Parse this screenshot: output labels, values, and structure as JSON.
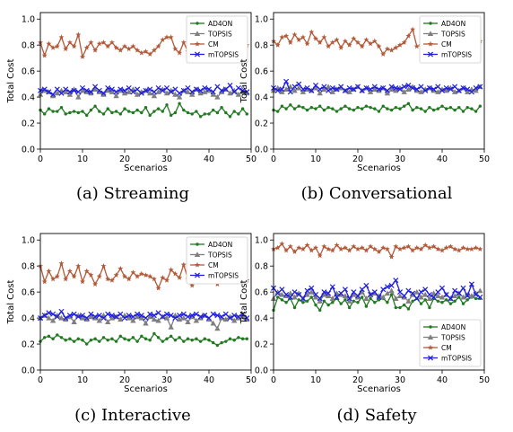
{
  "colors": {
    "AD4ON": "#217a21",
    "TOPSIS": "#7f7f7f",
    "CM": "#b35a3a",
    "mTOPSIS": "#1f1fe0"
  },
  "chart_data": [
    {
      "type": "line",
      "caption": "(a) Streaming",
      "xlabel": "Scenarios",
      "ylabel": "Total Cost",
      "xlim": [
        0,
        50
      ],
      "ylim": [
        0,
        1.05
      ],
      "legend": "top-right",
      "grid": false,
      "xticks": [
        "0",
        "10",
        "20",
        "30",
        "40",
        "50"
      ],
      "yticks": [
        "0.0",
        "0.2",
        "0.4",
        "0.6",
        "0.8",
        "1.0"
      ],
      "series": [
        {
          "name": "AD4ON",
          "marker": "dot",
          "values": [
            0.3,
            0.27,
            0.31,
            0.29,
            0.29,
            0.32,
            0.27,
            0.28,
            0.29,
            0.28,
            0.29,
            0.26,
            0.3,
            0.33,
            0.29,
            0.27,
            0.31,
            0.28,
            0.29,
            0.27,
            0.31,
            0.29,
            0.28,
            0.3,
            0.28,
            0.32,
            0.26,
            0.29,
            0.31,
            0.29,
            0.34,
            0.26,
            0.28,
            0.35,
            0.3,
            0.28,
            0.27,
            0.29,
            0.25,
            0.27,
            0.27,
            0.3,
            0.28,
            0.32,
            0.28,
            0.25,
            0.29,
            0.27,
            0.31,
            0.27
          ]
        },
        {
          "name": "TOPSIS",
          "marker": "triangle",
          "values": [
            0.42,
            0.45,
            0.44,
            0.41,
            0.43,
            0.45,
            0.44,
            0.42,
            0.46,
            0.4,
            0.45,
            0.44,
            0.43,
            0.46,
            0.44,
            0.42,
            0.45,
            0.44,
            0.41,
            0.45,
            0.43,
            0.44,
            0.46,
            0.42,
            0.44,
            0.45,
            0.43,
            0.41,
            0.44,
            0.46,
            0.43,
            0.45,
            0.42,
            0.4,
            0.45,
            0.44,
            0.42,
            0.46,
            0.43,
            0.44,
            0.45,
            0.42,
            0.4,
            0.44,
            0.46,
            0.43,
            0.45,
            0.42,
            0.44,
            0.43
          ]
        },
        {
          "name": "CM",
          "marker": "star",
          "values": [
            0.82,
            0.72,
            0.81,
            0.78,
            0.79,
            0.86,
            0.77,
            0.82,
            0.79,
            0.88,
            0.71,
            0.78,
            0.82,
            0.76,
            0.81,
            0.82,
            0.79,
            0.82,
            0.78,
            0.76,
            0.79,
            0.77,
            0.79,
            0.76,
            0.74,
            0.75,
            0.73,
            0.76,
            0.79,
            0.84,
            0.86,
            0.86,
            0.77,
            0.74,
            0.82,
            0.75,
            0.73,
            0.77,
            0.8,
            0.73,
            0.82,
            0.76,
            0.81,
            0.74,
            0.78,
            0.8,
            0.74,
            0.79,
            0.77,
            0.8
          ]
        },
        {
          "name": "mTOPSIS",
          "marker": "x",
          "values": [
            0.45,
            0.46,
            0.44,
            0.42,
            0.46,
            0.43,
            0.46,
            0.44,
            0.45,
            0.44,
            0.47,
            0.45,
            0.44,
            0.48,
            0.45,
            0.43,
            0.47,
            0.46,
            0.44,
            0.46,
            0.45,
            0.47,
            0.44,
            0.46,
            0.43,
            0.45,
            0.46,
            0.44,
            0.47,
            0.45,
            0.47,
            0.44,
            0.46,
            0.43,
            0.45,
            0.47,
            0.44,
            0.46,
            0.45,
            0.47,
            0.46,
            0.44,
            0.48,
            0.45,
            0.46,
            0.49,
            0.44,
            0.47,
            0.45,
            0.44
          ]
        }
      ]
    },
    {
      "type": "line",
      "caption": "(b) Conversational",
      "xlabel": "Scenarios",
      "ylabel": "Total Cost",
      "xlim": [
        0,
        50
      ],
      "ylim": [
        0,
        1.05
      ],
      "legend": "top-right",
      "grid": false,
      "xticks": [
        "0",
        "10",
        "20",
        "30",
        "40",
        "50"
      ],
      "yticks": [
        "0.0",
        "0.2",
        "0.4",
        "0.6",
        "0.8",
        "1.0"
      ],
      "series": [
        {
          "name": "AD4ON",
          "marker": "dot",
          "values": [
            0.3,
            0.29,
            0.33,
            0.31,
            0.34,
            0.31,
            0.33,
            0.32,
            0.3,
            0.32,
            0.31,
            0.33,
            0.3,
            0.32,
            0.31,
            0.29,
            0.31,
            0.33,
            0.31,
            0.3,
            0.32,
            0.31,
            0.33,
            0.32,
            0.31,
            0.29,
            0.33,
            0.31,
            0.3,
            0.32,
            0.31,
            0.33,
            0.35,
            0.3,
            0.32,
            0.31,
            0.29,
            0.32,
            0.3,
            0.31,
            0.33,
            0.31,
            0.32,
            0.3,
            0.32,
            0.29,
            0.32,
            0.31,
            0.29,
            0.33
          ]
        },
        {
          "name": "TOPSIS",
          "marker": "triangle",
          "values": [
            0.45,
            0.47,
            0.44,
            0.46,
            0.48,
            0.45,
            0.47,
            0.44,
            0.46,
            0.45,
            0.47,
            0.43,
            0.46,
            0.48,
            0.44,
            0.46,
            0.47,
            0.45,
            0.44,
            0.46,
            0.48,
            0.45,
            0.47,
            0.44,
            0.46,
            0.45,
            0.47,
            0.43,
            0.46,
            0.45,
            0.47,
            0.44,
            0.46,
            0.48,
            0.45,
            0.44,
            0.46,
            0.47,
            0.45,
            0.44,
            0.46,
            0.45,
            0.47,
            0.44,
            0.45,
            0.47,
            0.44,
            0.46,
            0.45,
            0.48
          ]
        },
        {
          "name": "CM",
          "marker": "star",
          "values": [
            0.83,
            0.8,
            0.86,
            0.87,
            0.82,
            0.88,
            0.84,
            0.86,
            0.81,
            0.9,
            0.85,
            0.82,
            0.86,
            0.79,
            0.82,
            0.84,
            0.78,
            0.83,
            0.8,
            0.85,
            0.82,
            0.79,
            0.84,
            0.81,
            0.83,
            0.79,
            0.73,
            0.77,
            0.76,
            0.78,
            0.8,
            0.82,
            0.87,
            0.92,
            0.79,
            0.8,
            0.85,
            0.81,
            0.84,
            0.82,
            0.8,
            0.83,
            0.85,
            0.79,
            0.81,
            0.82,
            0.8,
            0.86,
            0.81,
            0.83
          ]
        },
        {
          "name": "mTOPSIS",
          "marker": "x",
          "values": [
            0.47,
            0.45,
            0.46,
            0.52,
            0.44,
            0.48,
            0.5,
            0.46,
            0.47,
            0.45,
            0.49,
            0.46,
            0.48,
            0.45,
            0.47,
            0.46,
            0.48,
            0.45,
            0.47,
            0.46,
            0.48,
            0.45,
            0.47,
            0.46,
            0.48,
            0.46,
            0.47,
            0.45,
            0.48,
            0.47,
            0.46,
            0.48,
            0.49,
            0.47,
            0.46,
            0.48,
            0.45,
            0.47,
            0.46,
            0.48,
            0.45,
            0.47,
            0.46,
            0.48,
            0.45,
            0.47,
            0.46,
            0.44,
            0.47,
            0.48
          ]
        }
      ]
    },
    {
      "type": "line",
      "caption": "(c) Interactive",
      "xlabel": "Scenarios",
      "ylabel": "Total Cost",
      "xlim": [
        0,
        50
      ],
      "ylim": [
        0,
        1.05
      ],
      "legend": "top-right",
      "grid": false,
      "xticks": [
        "0",
        "10",
        "20",
        "30",
        "40",
        "50"
      ],
      "yticks": [
        "0.0",
        "0.2",
        "0.4",
        "0.6",
        "0.8",
        "1.0"
      ],
      "series": [
        {
          "name": "AD4ON",
          "marker": "dot",
          "values": [
            0.22,
            0.25,
            0.26,
            0.24,
            0.27,
            0.25,
            0.23,
            0.24,
            0.22,
            0.24,
            0.23,
            0.2,
            0.23,
            0.24,
            0.22,
            0.25,
            0.23,
            0.24,
            0.22,
            0.26,
            0.24,
            0.23,
            0.25,
            0.22,
            0.26,
            0.24,
            0.23,
            0.28,
            0.25,
            0.22,
            0.24,
            0.26,
            0.23,
            0.25,
            0.22,
            0.24,
            0.23,
            0.24,
            0.22,
            0.24,
            0.23,
            0.21,
            0.19,
            0.21,
            0.22,
            0.24,
            0.23,
            0.25,
            0.24,
            0.24
          ]
        },
        {
          "name": "TOPSIS",
          "marker": "triangle",
          "values": [
            0.4,
            0.42,
            0.4,
            0.38,
            0.42,
            0.4,
            0.39,
            0.41,
            0.37,
            0.42,
            0.4,
            0.39,
            0.41,
            0.4,
            0.38,
            0.42,
            0.37,
            0.4,
            0.41,
            0.39,
            0.42,
            0.4,
            0.38,
            0.41,
            0.4,
            0.36,
            0.41,
            0.39,
            0.38,
            0.41,
            0.4,
            0.33,
            0.42,
            0.39,
            0.4,
            0.37,
            0.41,
            0.38,
            0.4,
            0.42,
            0.39,
            0.36,
            0.32,
            0.4,
            0.39,
            0.41,
            0.38,
            0.4,
            0.41,
            0.39
          ]
        },
        {
          "name": "CM",
          "marker": "star",
          "values": [
            0.8,
            0.68,
            0.76,
            0.7,
            0.72,
            0.82,
            0.7,
            0.76,
            0.72,
            0.8,
            0.68,
            0.76,
            0.73,
            0.66,
            0.72,
            0.8,
            0.7,
            0.69,
            0.73,
            0.78,
            0.72,
            0.7,
            0.75,
            0.72,
            0.74,
            0.73,
            0.72,
            0.7,
            0.63,
            0.71,
            0.69,
            0.77,
            0.74,
            0.71,
            0.81,
            0.7,
            0.65,
            0.73,
            0.76,
            0.68,
            0.77,
            0.73,
            0.66,
            0.71,
            0.76,
            0.69,
            0.72,
            0.78,
            0.71,
            0.69
          ]
        },
        {
          "name": "mTOPSIS",
          "marker": "x",
          "values": [
            0.4,
            0.42,
            0.44,
            0.43,
            0.41,
            0.45,
            0.4,
            0.42,
            0.43,
            0.41,
            0.42,
            0.4,
            0.43,
            0.41,
            0.42,
            0.4,
            0.43,
            0.42,
            0.41,
            0.43,
            0.4,
            0.42,
            0.41,
            0.43,
            0.42,
            0.4,
            0.43,
            0.42,
            0.44,
            0.41,
            0.43,
            0.42,
            0.4,
            0.42,
            0.43,
            0.41,
            0.42,
            0.43,
            0.41,
            0.42,
            0.4,
            0.43,
            0.42,
            0.41,
            0.43,
            0.4,
            0.42,
            0.41,
            0.43,
            0.4
          ]
        }
      ]
    },
    {
      "type": "line",
      "caption": "(d) Safety",
      "xlabel": "Scenarios",
      "ylabel": "Total Cost",
      "xlim": [
        0,
        50
      ],
      "ylim": [
        0,
        1.05
      ],
      "legend": "bottom-right",
      "grid": false,
      "xticks": [
        "0",
        "10",
        "20",
        "30",
        "40",
        "50"
      ],
      "yticks": [
        "0.0",
        "0.2",
        "0.4",
        "0.6",
        "0.8",
        "1.0"
      ],
      "series": [
        {
          "name": "AD4ON",
          "marker": "dot",
          "values": [
            0.46,
            0.56,
            0.54,
            0.52,
            0.55,
            0.48,
            0.54,
            0.52,
            0.53,
            0.56,
            0.5,
            0.46,
            0.53,
            0.5,
            0.52,
            0.55,
            0.51,
            0.54,
            0.48,
            0.53,
            0.52,
            0.56,
            0.49,
            0.55,
            0.52,
            0.54,
            0.55,
            0.52,
            0.58,
            0.48,
            0.48,
            0.5,
            0.47,
            0.53,
            0.55,
            0.51,
            0.54,
            0.48,
            0.55,
            0.53,
            0.52,
            0.54,
            0.51,
            0.53,
            0.56,
            0.51,
            0.54,
            0.56,
            0.55,
            0.55
          ]
        },
        {
          "name": "TOPSIS",
          "marker": "triangle",
          "values": [
            0.55,
            0.6,
            0.58,
            0.57,
            0.59,
            0.56,
            0.59,
            0.55,
            0.58,
            0.6,
            0.56,
            0.53,
            0.58,
            0.57,
            0.55,
            0.59,
            0.58,
            0.57,
            0.53,
            0.58,
            0.56,
            0.6,
            0.55,
            0.58,
            0.59,
            0.57,
            0.56,
            0.59,
            0.61,
            0.55,
            0.57,
            0.56,
            0.53,
            0.58,
            0.6,
            0.56,
            0.58,
            0.55,
            0.59,
            0.57,
            0.56,
            0.58,
            0.55,
            0.57,
            0.59,
            0.56,
            0.58,
            0.57,
            0.59,
            0.61
          ]
        },
        {
          "name": "CM",
          "marker": "star",
          "values": [
            0.93,
            0.94,
            0.97,
            0.92,
            0.95,
            0.91,
            0.94,
            0.93,
            0.96,
            0.92,
            0.94,
            0.88,
            0.95,
            0.93,
            0.92,
            0.96,
            0.93,
            0.94,
            0.92,
            0.95,
            0.93,
            0.94,
            0.92,
            0.95,
            0.93,
            0.91,
            0.94,
            0.93,
            0.87,
            0.95,
            0.93,
            0.94,
            0.95,
            0.92,
            0.94,
            0.93,
            0.96,
            0.94,
            0.95,
            0.93,
            0.92,
            0.94,
            0.95,
            0.93,
            0.92,
            0.94,
            0.93,
            0.93,
            0.94,
            0.93
          ]
        },
        {
          "name": "mTOPSIS",
          "marker": "x",
          "values": [
            0.63,
            0.59,
            0.62,
            0.58,
            0.56,
            0.6,
            0.58,
            0.55,
            0.61,
            0.63,
            0.58,
            0.55,
            0.6,
            0.59,
            0.64,
            0.56,
            0.59,
            0.62,
            0.55,
            0.6,
            0.57,
            0.62,
            0.65,
            0.58,
            0.6,
            0.56,
            0.62,
            0.64,
            0.65,
            0.69,
            0.6,
            0.57,
            0.61,
            0.59,
            0.55,
            0.6,
            0.62,
            0.58,
            0.56,
            0.6,
            0.63,
            0.58,
            0.55,
            0.61,
            0.59,
            0.63,
            0.57,
            0.66,
            0.58,
            0.56
          ]
        }
      ]
    }
  ]
}
